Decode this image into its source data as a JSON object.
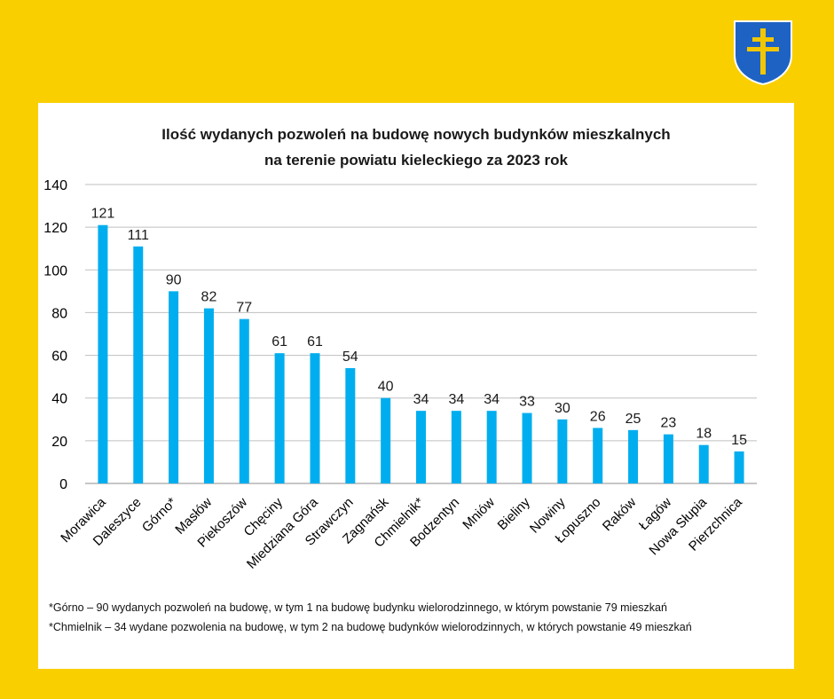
{
  "crest": {
    "label": "Powiat Kielecki coat of arms",
    "shield_color": "#1E63C4",
    "cross_color": "#F2C600"
  },
  "colors": {
    "background": "#F9CF00",
    "bar": "#00AEEF",
    "grid": "#BFBFBF",
    "panel": "#FFFFFF"
  },
  "chart_data": {
    "type": "bar",
    "title_line1": "Ilość wydanych pozwoleń na budowę nowych budynków mieszkalnych",
    "title_line2": "na terenie powiatu kieleckiego za 2023 rok",
    "categories": [
      "Morawica",
      "Daleszyce",
      "Górno*",
      "Masłów",
      "Piekoszów",
      "Chęciny",
      "Miedziana Góra",
      "Strawczyn",
      "Zagnańsk",
      "Chmielnik*",
      "Bodzentyn",
      "Mniów",
      "Bieliny",
      "Nowiny",
      "Łopuszno",
      "Raków",
      "Łagów",
      "Nowa Słupia",
      "Pierzchnica"
    ],
    "values": [
      121,
      111,
      90,
      82,
      77,
      61,
      61,
      54,
      40,
      34,
      34,
      34,
      33,
      30,
      26,
      25,
      23,
      18,
      15
    ],
    "ylim": [
      0,
      140
    ],
    "yticks": [
      0,
      20,
      40,
      60,
      80,
      100,
      120,
      140
    ],
    "xlabel": "",
    "ylabel": "",
    "grid": true,
    "data_labels": true
  },
  "footnotes": {
    "note1": "*Górno – 90 wydanych pozwoleń na budowę, w tym 1 na budowę budynku wielorodzinnego, w którym powstanie 79 mieszkań",
    "note2": "*Chmielnik – 34 wydane pozwolenia na budowę, w tym 2 na budowę budynków wielorodzinnych, w których powstanie 49 mieszkań"
  }
}
